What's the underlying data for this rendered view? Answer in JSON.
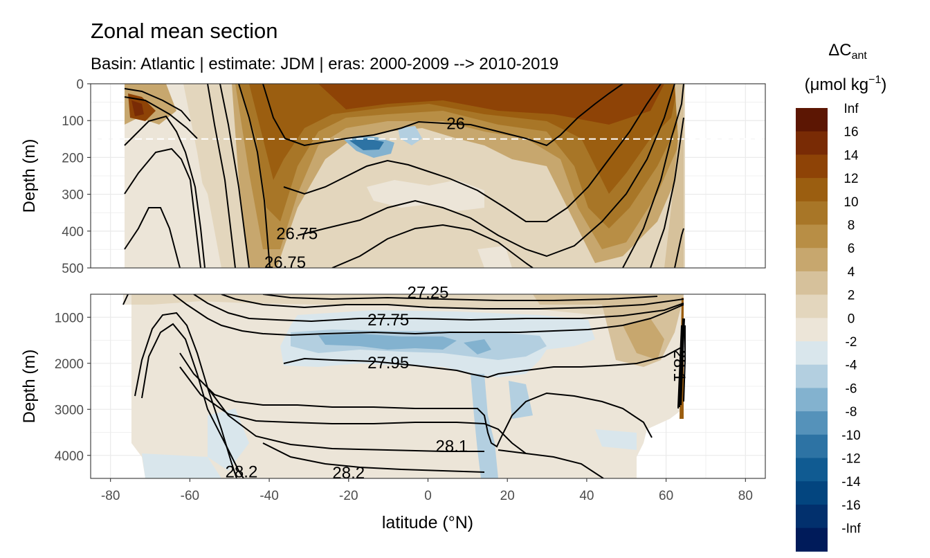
{
  "chart_data": {
    "type": "heatmap",
    "title": "Zonal mean section",
    "subtitle": "Basin: Atlantic | estimate: JDM  | eras: 2000-2009 --> 2010-2019",
    "xlabel": "latitude (°N)",
    "ylabel": "Depth (m)",
    "x_ticks": [
      "-80",
      "-60",
      "-40",
      "-20",
      "0",
      "20",
      "40",
      "60",
      "80"
    ],
    "xlim": [
      -85,
      85
    ],
    "panels": [
      {
        "name": "upper",
        "ylim": [
          0,
          500
        ],
        "y_ticks": [
          "0",
          "100",
          "200",
          "300",
          "400",
          "500"
        ],
        "reference_line_depth": 150
      },
      {
        "name": "lower",
        "ylim": [
          500,
          4500
        ],
        "y_ticks": [
          "1000",
          "2000",
          "3000",
          "4000"
        ]
      }
    ],
    "legend": {
      "title_main": "ΔC",
      "title_sub": "ant",
      "unit_main": "(μmol kg",
      "unit_sup": "−1",
      "unit_close": ")",
      "labels": [
        "Inf",
        "16",
        "14",
        "12",
        "10",
        "8",
        "6",
        "4",
        "2",
        "0",
        "-2",
        "-4",
        "-6",
        "-8",
        "-10",
        "-12",
        "-14",
        "-16",
        "-Inf"
      ],
      "colors": [
        "#5c1603",
        "#792b05",
        "#8e4306",
        "#9b5e10",
        "#a87627",
        "#b88e45",
        "#c7a76e",
        "#d6c19b",
        "#e3d6bd",
        "#ece5d8",
        "#d9e6ec",
        "#b3cfe0",
        "#83b2cf",
        "#5592ba",
        "#2d73a4",
        "#105b92",
        "#03457f",
        "#02306d",
        "#001b5a"
      ],
      "placement": "right"
    },
    "isopycnals": [
      {
        "label": "26",
        "lat": 7,
        "depth": 123
      },
      {
        "label": "26.75",
        "lat": -33,
        "depth": 422
      },
      {
        "label": "26.75",
        "lat": -36,
        "depth": 500
      },
      {
        "label": "27.25",
        "lat": 0,
        "depth": 580
      },
      {
        "label": "27.75",
        "lat": -10,
        "depth": 1180
      },
      {
        "label": "27.95",
        "lat": -10,
        "depth": 2110
      },
      {
        "label": "28.1",
        "lat": 6,
        "depth": 3920
      },
      {
        "label": "28.2",
        "lat": -47,
        "depth": 4480
      },
      {
        "label": "28.2",
        "lat": -20,
        "depth": 4500
      },
      {
        "label": "28.1",
        "lat": 62,
        "depth": 2050,
        "rotation": 90
      }
    ]
  }
}
